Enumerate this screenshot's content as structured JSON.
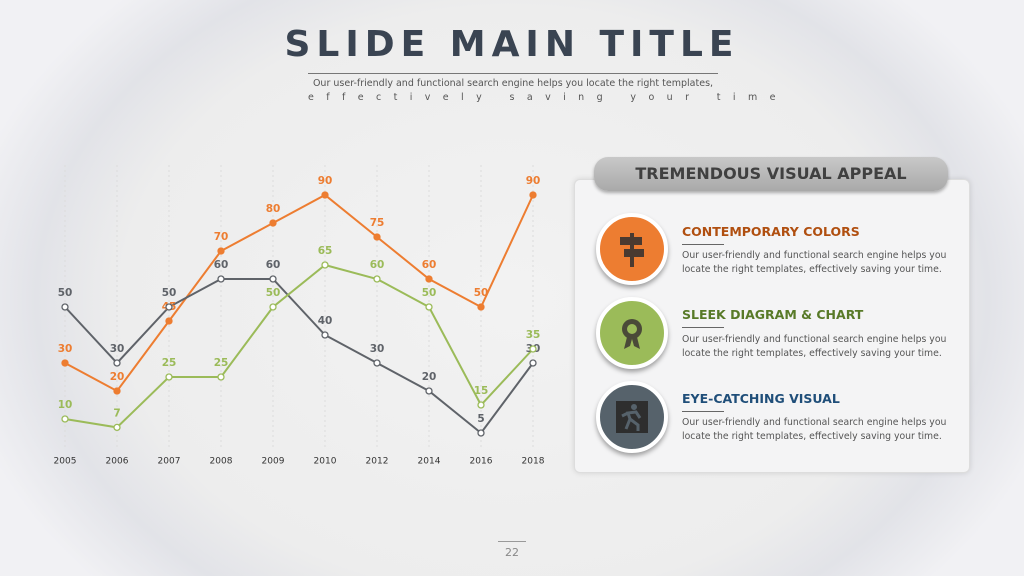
{
  "header": {
    "title": "SLIDE MAIN TITLE",
    "subtitle_line1": "Our user-friendly and functional search engine helps you locate the right templates,",
    "subtitle_line2": "effectively saving your time"
  },
  "chart_data": {
    "type": "line",
    "categories": [
      "2005",
      "2006",
      "2007",
      "2008",
      "2009",
      "2010",
      "2012",
      "2014",
      "2016",
      "2018"
    ],
    "ylim": [
      0,
      100
    ],
    "series": [
      {
        "color": "#ed7d31",
        "values": [
          30,
          20,
          45,
          70,
          80,
          90,
          75,
          60,
          50,
          90
        ]
      },
      {
        "color": "#5f6369",
        "values": [
          50,
          30,
          50,
          60,
          60,
          40,
          30,
          20,
          5,
          30
        ]
      },
      {
        "color": "#9bbb59",
        "values": [
          10,
          7,
          25,
          25,
          50,
          65,
          60,
          50,
          15,
          35
        ]
      }
    ]
  },
  "panel": {
    "title": "TREMENDOUS VISUAL APPEAL",
    "items": [
      {
        "heading": "CONTEMPORARY COLORS",
        "text": "Our user-friendly and functional search engine helps you locate the right templates, effectively saving your time."
      },
      {
        "heading": "SLEEK DIAGRAM & CHART",
        "text": "Our user-friendly and functional search engine helps you locate the right templates, effectively saving your time."
      },
      {
        "heading": "EYE-CATCHING VISUAL",
        "text": "Our user-friendly and functional search engine helps you locate the right templates, effectively saving your time."
      }
    ]
  },
  "page_number": "22"
}
